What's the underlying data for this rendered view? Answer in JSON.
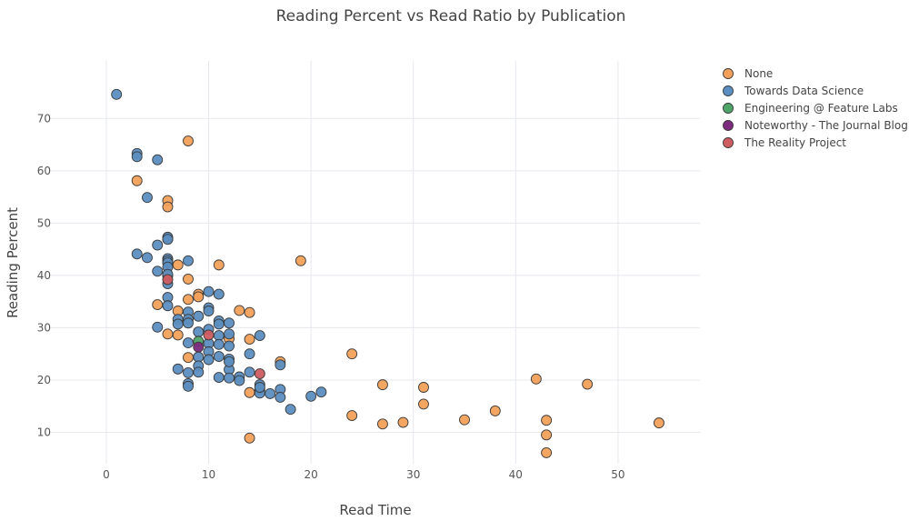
{
  "chart_data": {
    "type": "scatter",
    "title": "Reading Percent vs Read Ratio by Publication",
    "xlabel": "Read Time",
    "ylabel": "Reading Percent",
    "xlim": [
      -5.5,
      58
    ],
    "ylim": [
      4,
      81
    ],
    "xticks": [
      0,
      10,
      20,
      30,
      40,
      50
    ],
    "yticks": [
      10,
      20,
      30,
      40,
      50,
      60,
      70
    ],
    "grid": true,
    "legend_position": "top-right",
    "series": [
      {
        "name": "None",
        "color": "#f2a05a",
        "x": [
          8,
          3,
          6,
          6,
          6,
          6,
          7,
          8,
          11,
          19,
          5,
          8,
          9,
          9,
          7,
          13,
          14,
          6,
          7,
          12,
          14,
          17,
          24,
          8,
          14,
          14,
          27,
          31,
          31,
          24,
          27,
          29,
          35,
          38,
          42,
          47,
          43,
          43,
          43,
          54
        ],
        "y": [
          65.7,
          58.1,
          54.3,
          53.1,
          46.9,
          39.9,
          42.0,
          39.3,
          42.0,
          42.8,
          34.4,
          35.4,
          36.4,
          35.9,
          33.2,
          33.3,
          32.9,
          28.8,
          28.6,
          27.9,
          27.8,
          23.5,
          25.0,
          24.3,
          17.6,
          8.9,
          19.1,
          18.6,
          15.4,
          13.2,
          11.6,
          11.9,
          12.4,
          14.1,
          20.2,
          19.2,
          12.3,
          9.5,
          6.1,
          11.8
        ]
      },
      {
        "name": "Towards Data Science",
        "color": "#5b8ec0",
        "x": [
          1,
          3,
          3,
          5,
          4,
          6,
          6,
          6,
          6,
          6,
          6,
          6,
          3,
          4,
          5,
          8,
          5,
          6,
          6,
          6,
          5,
          7,
          7,
          8,
          8,
          8,
          9,
          9,
          10,
          10,
          10,
          11,
          11,
          11,
          12,
          12,
          7,
          8,
          8,
          9,
          9,
          9,
          10,
          10,
          10,
          10,
          11,
          11,
          11,
          12,
          12,
          12,
          13,
          13,
          14,
          14,
          15,
          15,
          15,
          15,
          15,
          16,
          17,
          17,
          17,
          18,
          20,
          21,
          11,
          12,
          12,
          8,
          8
        ],
        "y": [
          74.6,
          63.3,
          62.7,
          62.1,
          54.9,
          47.3,
          46.9,
          43.2,
          42.8,
          42.4,
          41.6,
          40.2,
          44.1,
          43.4,
          45.8,
          42.8,
          40.8,
          38.4,
          35.8,
          34.2,
          30.1,
          31.6,
          30.7,
          33.0,
          31.6,
          30.9,
          29.2,
          32.2,
          33.8,
          33.2,
          36.9,
          36.4,
          31.3,
          30.7,
          30.9,
          28.8,
          22.1,
          27.1,
          21.4,
          24.4,
          22.7,
          21.5,
          29.7,
          27.0,
          25.4,
          23.9,
          28.5,
          26.8,
          24.5,
          26.5,
          24.0,
          22.0,
          20.6,
          19.9,
          25.0,
          21.5,
          28.5,
          19.1,
          18.2,
          17.5,
          18.6,
          17.4,
          18.2,
          16.7,
          22.9,
          14.4,
          16.9,
          17.7,
          20.5,
          20.4,
          23.5,
          19.3,
          18.8
        ]
      },
      {
        "name": "Engineering @ Feature Labs",
        "color": "#4fa468",
        "x": [
          9
        ],
        "y": [
          27.4
        ]
      },
      {
        "name": "Noteworthy - The Journal Blog",
        "color": "#7b2a7d",
        "x": [
          9
        ],
        "y": [
          26.3
        ]
      },
      {
        "name": "The Reality Project",
        "color": "#cf5c60",
        "x": [
          6,
          10,
          15
        ],
        "y": [
          39.2,
          28.6,
          21.2
        ]
      }
    ]
  }
}
